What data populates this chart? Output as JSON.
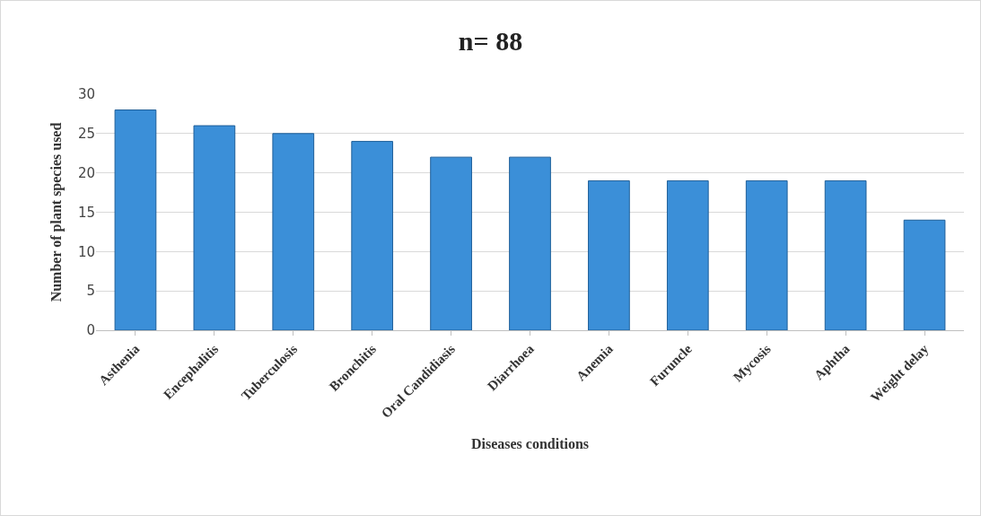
{
  "chart_data": {
    "type": "bar",
    "title": "n= 88",
    "xlabel": "Diseases conditions",
    "ylabel": "Number of plant species used",
    "categories": [
      "Asthenia",
      "Encephalitis",
      "Tuberculosis",
      "Bronchitis",
      "Oral Candidiasis",
      "Diarrhoea",
      "Anemia",
      "Furuncle",
      "Mycosis",
      "Aphtha",
      "Weight delay"
    ],
    "values": [
      28,
      26,
      25,
      24,
      22,
      22,
      19,
      19,
      19,
      19,
      14
    ],
    "color": "#3b8fd8",
    "ylim": [
      0,
      30
    ],
    "yticks": [
      0,
      5,
      10,
      15,
      20,
      25,
      30
    ],
    "grid": "y"
  }
}
